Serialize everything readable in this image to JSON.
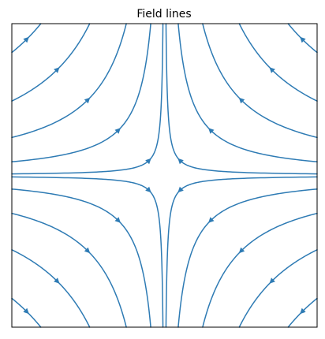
{
  "chart_data": {
    "type": "streamplot",
    "title": "Field lines",
    "xlabel": "",
    "ylabel": "",
    "field": {
      "u": "-x",
      "v": "y"
    },
    "xlim": [
      -1,
      1
    ],
    "ylim": [
      -1,
      1
    ],
    "axes_ticks": false,
    "grid": false,
    "color": "#2e7bb4",
    "seed_radii": [
      0.1,
      0.3,
      0.5,
      0.7,
      0.9
    ],
    "quadrants": [
      {
        "name": "top-left",
        "sx": -1,
        "sy": 1
      },
      {
        "name": "top-right",
        "sx": 1,
        "sy": 1
      },
      {
        "name": "bottom-left",
        "sx": -1,
        "sy": -1
      },
      {
        "name": "bottom-right",
        "sx": 1,
        "sy": -1
      }
    ]
  }
}
